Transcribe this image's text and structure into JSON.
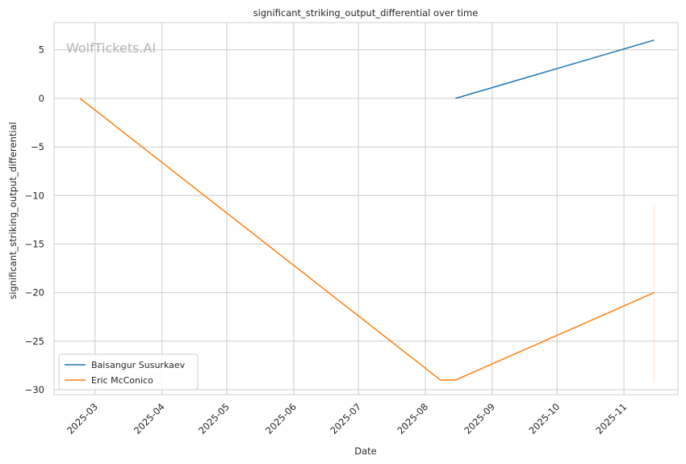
{
  "watermark": "WolfTickets.AI",
  "chart_data": {
    "type": "line",
    "title": "significant_striking_output_differential over time",
    "xlabel": "Date",
    "ylabel": "significant_striking_output_differential",
    "x_type": "date",
    "xlim": [
      "2025-02-10",
      "2025-11-26"
    ],
    "ylim": [
      -30.5,
      7.8
    ],
    "x_ticks": [
      "2025-03-01",
      "2025-04-01",
      "2025-05-01",
      "2025-06-01",
      "2025-07-01",
      "2025-08-01",
      "2025-09-01",
      "2025-10-01",
      "2025-11-01"
    ],
    "x_tick_labels": [
      "2025-03",
      "2025-04",
      "2025-05",
      "2025-06",
      "2025-07",
      "2025-08",
      "2025-09",
      "2025-10",
      "2025-11"
    ],
    "y_ticks": [
      5,
      0,
      -5,
      -10,
      -15,
      -20,
      -25,
      -30
    ],
    "y_tick_labels": [
      "5",
      "0",
      "−5",
      "−10",
      "−15",
      "−20",
      "−25",
      "−30"
    ],
    "grid": true,
    "legend_position": "lower-left",
    "series": [
      {
        "name": "Baisangur Susurkaev",
        "color": "#1f77b4",
        "points": [
          {
            "x": "2025-08-15",
            "y": 0
          },
          {
            "x": "2025-11-15",
            "y": 6
          }
        ]
      },
      {
        "name": "Eric McConico",
        "color": "#ff7f0e",
        "points": [
          {
            "x": "2025-02-22",
            "y": 0
          },
          {
            "x": "2025-08-08",
            "y": -29
          },
          {
            "x": "2025-08-15",
            "y": -29
          },
          {
            "x": "2025-11-15",
            "y": -20
          }
        ],
        "error_bar": {
          "x": "2025-11-15",
          "low": -29.2,
          "high": -11
        }
      }
    ]
  }
}
